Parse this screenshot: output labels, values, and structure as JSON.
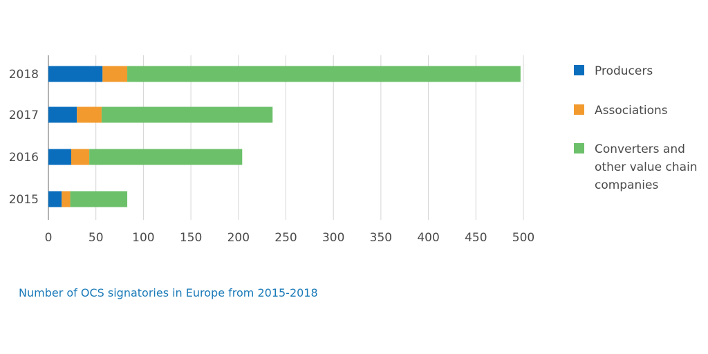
{
  "caption": "Number of OCS signatories in Europe from 2015-2018",
  "chart_data": {
    "type": "bar",
    "orientation": "horizontal",
    "stacked": true,
    "categories": [
      "2018",
      "2017",
      "2016",
      "2015"
    ],
    "series": [
      {
        "name": "Producers",
        "color": "#0a6ebd",
        "values": [
          57,
          30,
          24,
          14
        ]
      },
      {
        "name": "Associations",
        "color": "#f29a2e",
        "values": [
          26,
          26,
          19,
          9
        ]
      },
      {
        "name": "Converters and other value chain companies",
        "color": "#6cc06a",
        "values": [
          414,
          180,
          161,
          60
        ]
      }
    ],
    "legend_lines": [
      [
        "Producers"
      ],
      [
        "Associations"
      ],
      [
        "Converters and",
        "other value chain",
        "companies"
      ]
    ],
    "xlim": [
      0,
      500
    ],
    "xticks": [
      0,
      50,
      100,
      150,
      200,
      250,
      300,
      350,
      400,
      450,
      500
    ],
    "grid": true,
    "legend_position": "right",
    "title": "",
    "xlabel": "",
    "ylabel": ""
  }
}
